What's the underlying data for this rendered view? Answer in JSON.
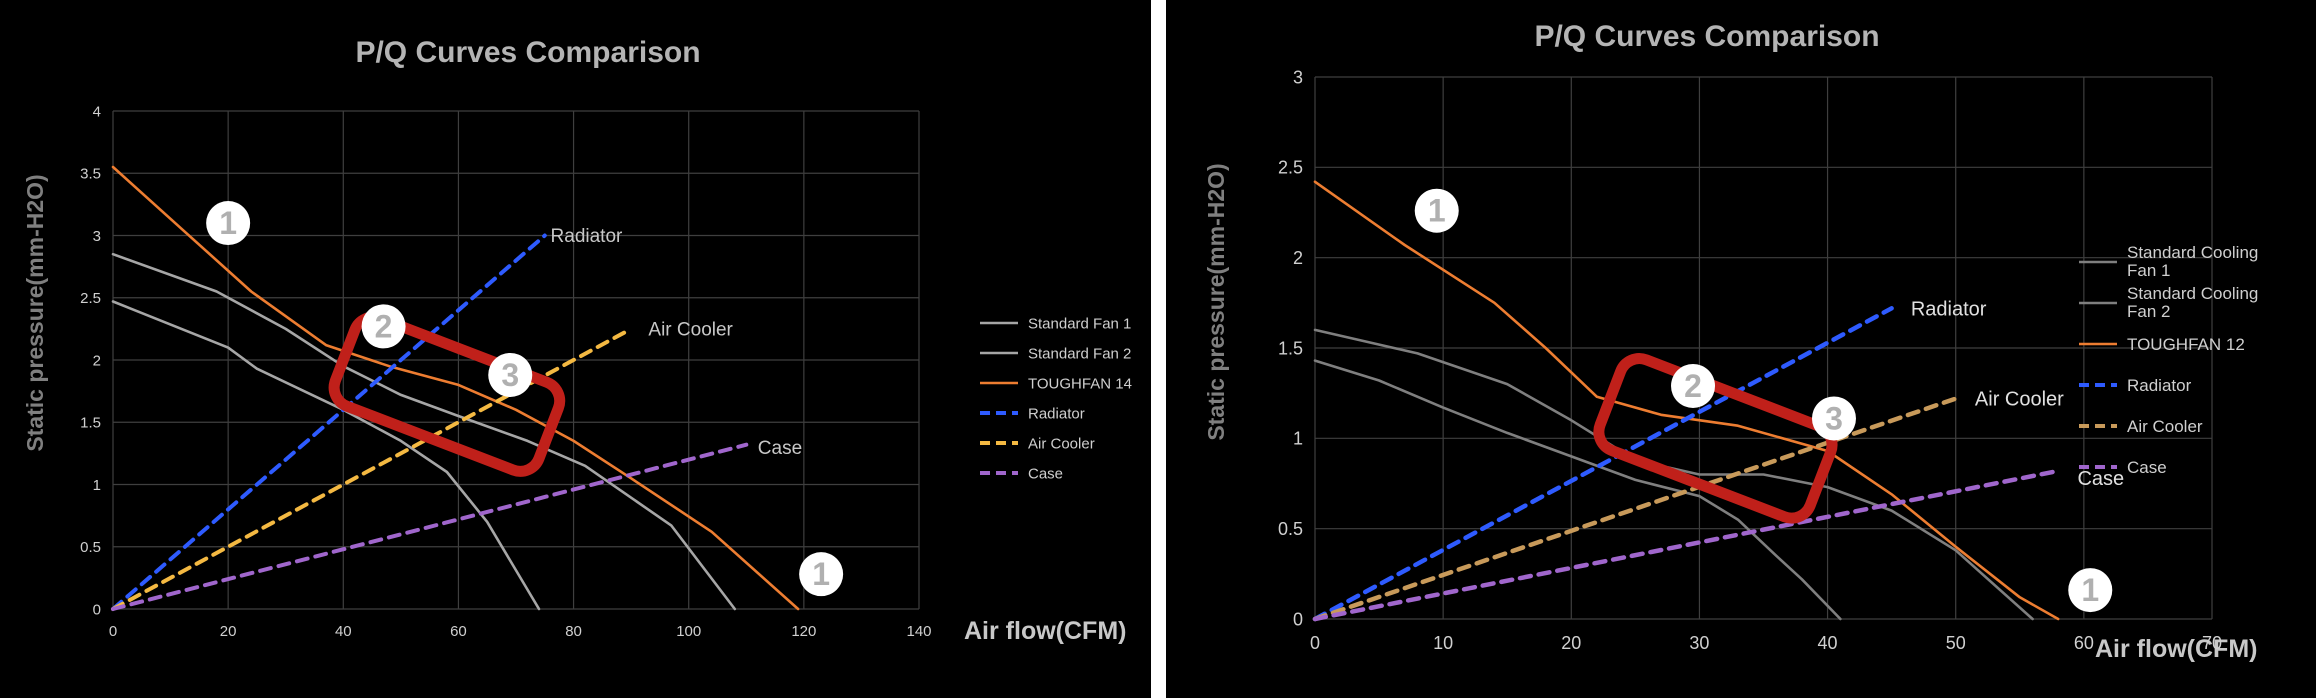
{
  "chart_data": [
    {
      "type": "line",
      "title": "P/Q Curves Comparison",
      "xlabel": "Air flow(CFM)",
      "ylabel": "Static pressure(mm-H2O)",
      "xlim": [
        0,
        140
      ],
      "ylim": [
        0,
        4
      ],
      "x_ticks": [
        "0",
        "20",
        "40",
        "60",
        "80",
        "100",
        "120",
        "140"
      ],
      "y_ticks": [
        "0",
        "0.5",
        "1",
        "1.5",
        "2",
        "2.5",
        "3",
        "3.5",
        "4"
      ],
      "grid": true,
      "legend_position": "right",
      "series": [
        {
          "name": "Standard Fan 1",
          "color": "#a6a6a6",
          "dashed": false,
          "points": [
            [
              0,
              2.47
            ],
            [
              20,
              2.1
            ],
            [
              25,
              1.93
            ],
            [
              40,
              1.6
            ],
            [
              50,
              1.35
            ],
            [
              58,
              1.1
            ],
            [
              65,
              0.7
            ],
            [
              74,
              0
            ]
          ]
        },
        {
          "name": "Standard Fan 2",
          "color": "#a6a6a6",
          "dashed": false,
          "points": [
            [
              0,
              2.85
            ],
            [
              18,
              2.55
            ],
            [
              30,
              2.25
            ],
            [
              40,
              1.95
            ],
            [
              50,
              1.72
            ],
            [
              60,
              1.55
            ],
            [
              72,
              1.35
            ],
            [
              82,
              1.15
            ],
            [
              97,
              0.67
            ],
            [
              108,
              0
            ]
          ]
        },
        {
          "name": "TOUGHFAN 14",
          "color": "#ed7d31",
          "dashed": false,
          "points": [
            [
              0,
              3.55
            ],
            [
              12,
              3.05
            ],
            [
              24,
              2.55
            ],
            [
              37,
              2.12
            ],
            [
              48,
              1.95
            ],
            [
              60,
              1.8
            ],
            [
              70,
              1.6
            ],
            [
              80,
              1.35
            ],
            [
              90,
              1.05
            ],
            [
              104,
              0.62
            ],
            [
              119,
              0
            ]
          ]
        },
        {
          "name": "Radiator",
          "color": "#2e5bff",
          "dashed": true,
          "points": [
            [
              0,
              0
            ],
            [
              75,
              3.0
            ]
          ]
        },
        {
          "name": "Air Cooler",
          "color": "#f4b942",
          "dashed": true,
          "points": [
            [
              0,
              0
            ],
            [
              90,
              2.25
            ]
          ]
        },
        {
          "name": "Case",
          "color": "#a066cc",
          "dashed": true,
          "points": [
            [
              0,
              0
            ],
            [
              110,
              1.32
            ]
          ]
        }
      ],
      "line_labels": [
        {
          "series": "Radiator",
          "text": "Radiator",
          "x": 76,
          "y": 3.0
        },
        {
          "series": "Air Cooler",
          "text": "Air Cooler",
          "x": 93,
          "y": 2.25
        },
        {
          "series": "Case",
          "text": "Case",
          "x": 112,
          "y": 1.3
        }
      ],
      "markers": [
        {
          "text": "1",
          "x": 20,
          "y": 3.1
        },
        {
          "text": "1",
          "x": 123,
          "y": 0.28
        },
        {
          "text": "2",
          "x": 47,
          "y": 2.27
        },
        {
          "text": "3",
          "x": 69,
          "y": 1.88
        }
      ],
      "highlight_box": {
        "color": "#c0201a",
        "from": [
          57,
          2.1
        ],
        "to": [
          59,
          1.35
        ],
        "angle_deg": 21
      }
    },
    {
      "type": "line",
      "title": "P/Q Curves Comparison",
      "xlabel": "Air flow(CFM)",
      "ylabel": "Static pressure(mm-H2O)",
      "xlim": [
        0,
        70
      ],
      "ylim": [
        0,
        3
      ],
      "x_ticks": [
        "0",
        "10",
        "20",
        "30",
        "40",
        "50",
        "60",
        "70"
      ],
      "y_ticks": [
        "0",
        "0.5",
        "1",
        "1.5",
        "2",
        "2.5",
        "3"
      ],
      "grid": true,
      "legend_position": "right",
      "series": [
        {
          "name": "Standard Cooling Fan 1",
          "color": "#7f7f7f",
          "dashed": false,
          "points": [
            [
              0,
              1.43
            ],
            [
              5,
              1.32
            ],
            [
              10,
              1.17
            ],
            [
              15,
              1.03
            ],
            [
              20,
              0.9
            ],
            [
              25,
              0.77
            ],
            [
              30,
              0.68
            ],
            [
              33,
              0.55
            ],
            [
              36,
              0.35
            ],
            [
              38,
              0.22
            ],
            [
              41,
              0
            ]
          ]
        },
        {
          "name": "Standard Cooling Fan 2",
          "color": "#7f7f7f",
          "dashed": false,
          "points": [
            [
              0,
              1.6
            ],
            [
              8,
              1.47
            ],
            [
              15,
              1.3
            ],
            [
              20,
              1.1
            ],
            [
              25,
              0.88
            ],
            [
              30,
              0.8
            ],
            [
              35,
              0.8
            ],
            [
              40,
              0.73
            ],
            [
              45,
              0.6
            ],
            [
              50,
              0.38
            ],
            [
              56,
              0
            ]
          ]
        },
        {
          "name": "TOUGHFAN 12",
          "color": "#ed7d31",
          "dashed": false,
          "points": [
            [
              0,
              2.42
            ],
            [
              7,
              2.07
            ],
            [
              14,
              1.75
            ],
            [
              18,
              1.5
            ],
            [
              22,
              1.23
            ],
            [
              27,
              1.13
            ],
            [
              33,
              1.07
            ],
            [
              40,
              0.93
            ],
            [
              45,
              0.69
            ],
            [
              50,
              0.4
            ],
            [
              55,
              0.12
            ],
            [
              58,
              0
            ]
          ]
        },
        {
          "name": "Radiator",
          "color": "#2e5bff",
          "dashed": true,
          "points": [
            [
              0,
              0
            ],
            [
              45,
              1.72
            ]
          ]
        },
        {
          "name": "Air Cooler",
          "color": "#c89a5a",
          "dashed": true,
          "points": [
            [
              0,
              0
            ],
            [
              50,
              1.22
            ]
          ]
        },
        {
          "name": "Case",
          "color": "#a066cc",
          "dashed": true,
          "points": [
            [
              0,
              0
            ],
            [
              58,
              0.82
            ]
          ]
        }
      ],
      "line_labels": [
        {
          "series": "Radiator",
          "text": "Radiator",
          "x": 46.5,
          "y": 1.72
        },
        {
          "series": "Air Cooler",
          "text": "Air Cooler",
          "x": 51.5,
          "y": 1.22
        },
        {
          "series": "Case",
          "text": "Case",
          "x": 59.5,
          "y": 0.78
        }
      ],
      "markers": [
        {
          "text": "1",
          "x": 9.5,
          "y": 2.26
        },
        {
          "text": "1",
          "x": 60.5,
          "y": 0.16
        },
        {
          "text": "2",
          "x": 29.5,
          "y": 1.29
        },
        {
          "text": "3",
          "x": 40.5,
          "y": 1.11
        }
      ],
      "highlight_box": {
        "color": "#c0201a",
        "from": [
          31,
          1.3
        ],
        "to": [
          31.5,
          0.7
        ],
        "angle_deg": 21
      }
    }
  ]
}
